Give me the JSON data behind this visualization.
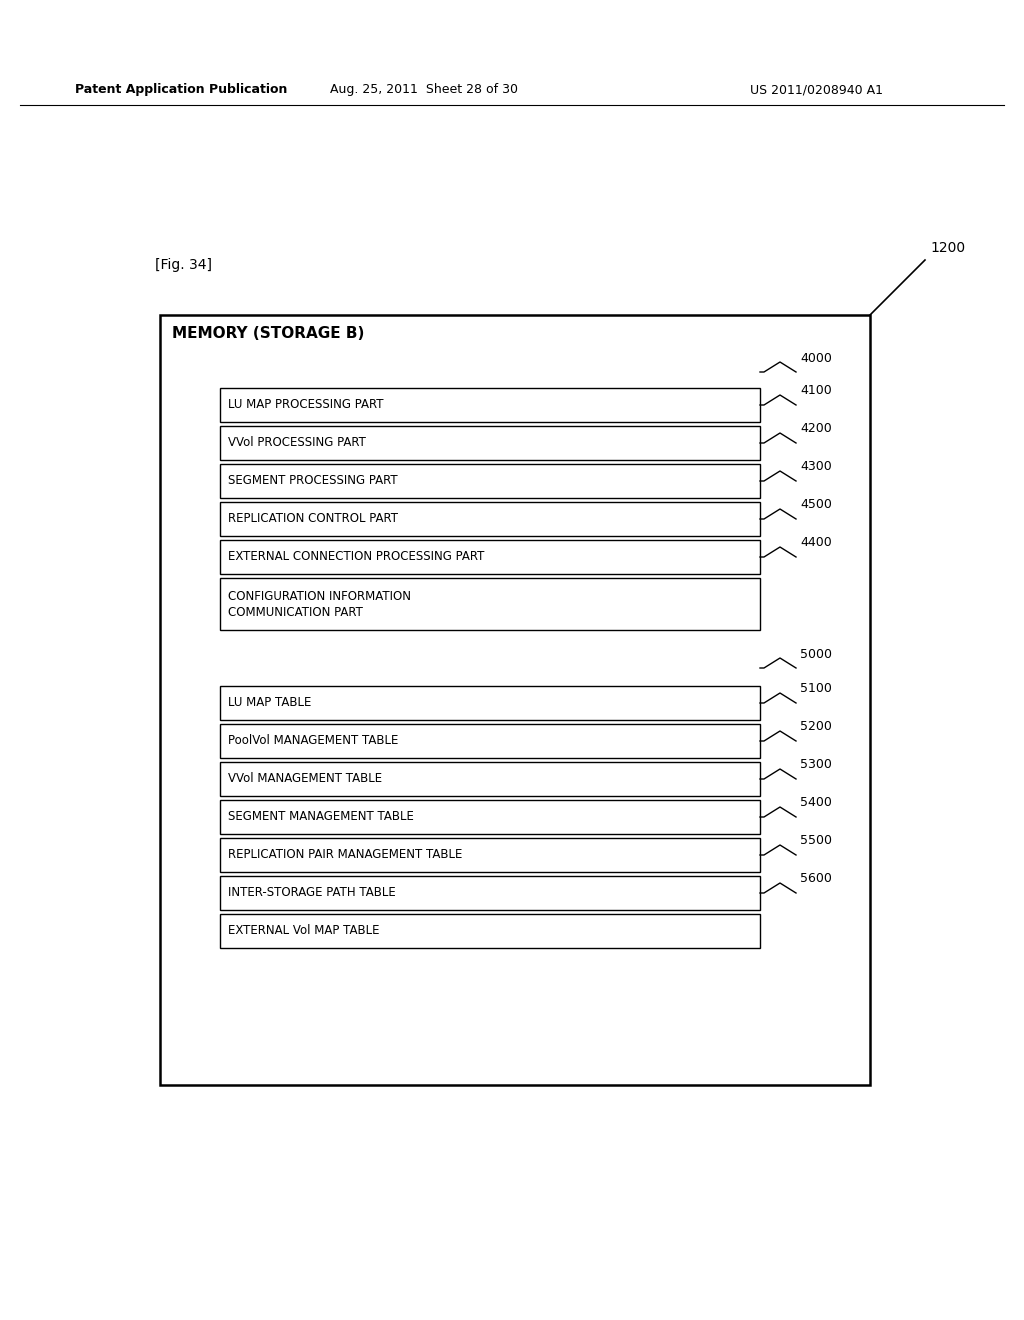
{
  "title": "Patent Application Publication",
  "title_date": "Aug. 25, 2011  Sheet 28 of 30",
  "title_patent": "US 2011/0208940 A1",
  "fig_label": "[Fig. 34]",
  "outer_box_label": "MEMORY (STORAGE B)",
  "outer_ref": "1200",
  "group1_ref": "4000",
  "group2_ref": "5000",
  "boxes_group1": [
    {
      "label": "LU MAP PROCESSING PART",
      "ref": "4100"
    },
    {
      "label": "VVol PROCESSING PART",
      "ref": "4200"
    },
    {
      "label": "SEGMENT PROCESSING PART",
      "ref": "4300"
    },
    {
      "label": "REPLICATION CONTROL PART",
      "ref": "4500"
    },
    {
      "label": "EXTERNAL CONNECTION PROCESSING PART",
      "ref": "4400"
    },
    {
      "label": "CONFIGURATION INFORMATION\nCOMMUNICATION PART",
      "ref": ""
    }
  ],
  "boxes_group2": [
    {
      "label": "LU MAP TABLE",
      "ref": "5100"
    },
    {
      "label": "PoolVol MANAGEMENT TABLE",
      "ref": "5200"
    },
    {
      "label": "VVol MANAGEMENT TABLE",
      "ref": "5300"
    },
    {
      "label": "SEGMENT MANAGEMENT TABLE",
      "ref": "5400"
    },
    {
      "label": "REPLICATION PAIR MANAGEMENT TABLE",
      "ref": "5500"
    },
    {
      "label": "INTER-STORAGE PATH TABLE",
      "ref": "5600"
    },
    {
      "label": "EXTERNAL Vol MAP TABLE",
      "ref": ""
    }
  ],
  "bg_color": "#ffffff",
  "box_edge_color": "#000000",
  "text_color": "#000000"
}
